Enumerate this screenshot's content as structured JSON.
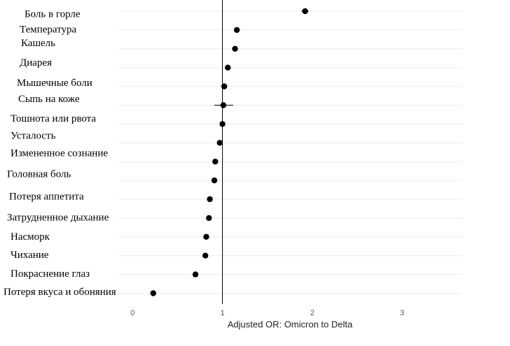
{
  "chart_data": {
    "type": "forest",
    "xlabel": "Adjusted OR: Omicron to Delta",
    "categories": [
      "Боль в горле",
      "Температура",
      "Кашель",
      "Диарея",
      "Мышечные боли",
      "Сыпь на коже",
      "Тошнота или рвота",
      "Усталость",
      "Измененное сознание",
      "Головная боль",
      "Потеря аппетита",
      "Затрудненное дыхание",
      "Насморк",
      "Чихание",
      "Покраснение глаз",
      "Потеря вкуса и обоняния"
    ],
    "values": [
      1.92,
      1.16,
      1.14,
      1.06,
      1.02,
      1.01,
      1.0,
      0.97,
      0.92,
      0.91,
      0.86,
      0.85,
      0.82,
      0.81,
      0.7,
      0.23
    ],
    "lower": [
      1.88,
      null,
      null,
      1.03,
      null,
      0.91,
      null,
      null,
      0.89,
      null,
      null,
      null,
      null,
      null,
      null,
      null
    ],
    "upper": [
      1.96,
      null,
      null,
      1.09,
      null,
      1.12,
      null,
      null,
      0.95,
      null,
      null,
      null,
      null,
      null,
      null,
      null
    ],
    "color": "#000000",
    "reference_line": 1,
    "xlim": [
      -0.15,
      3.67
    ],
    "xticks": [
      0,
      1,
      2,
      3
    ],
    "grid": true
  }
}
